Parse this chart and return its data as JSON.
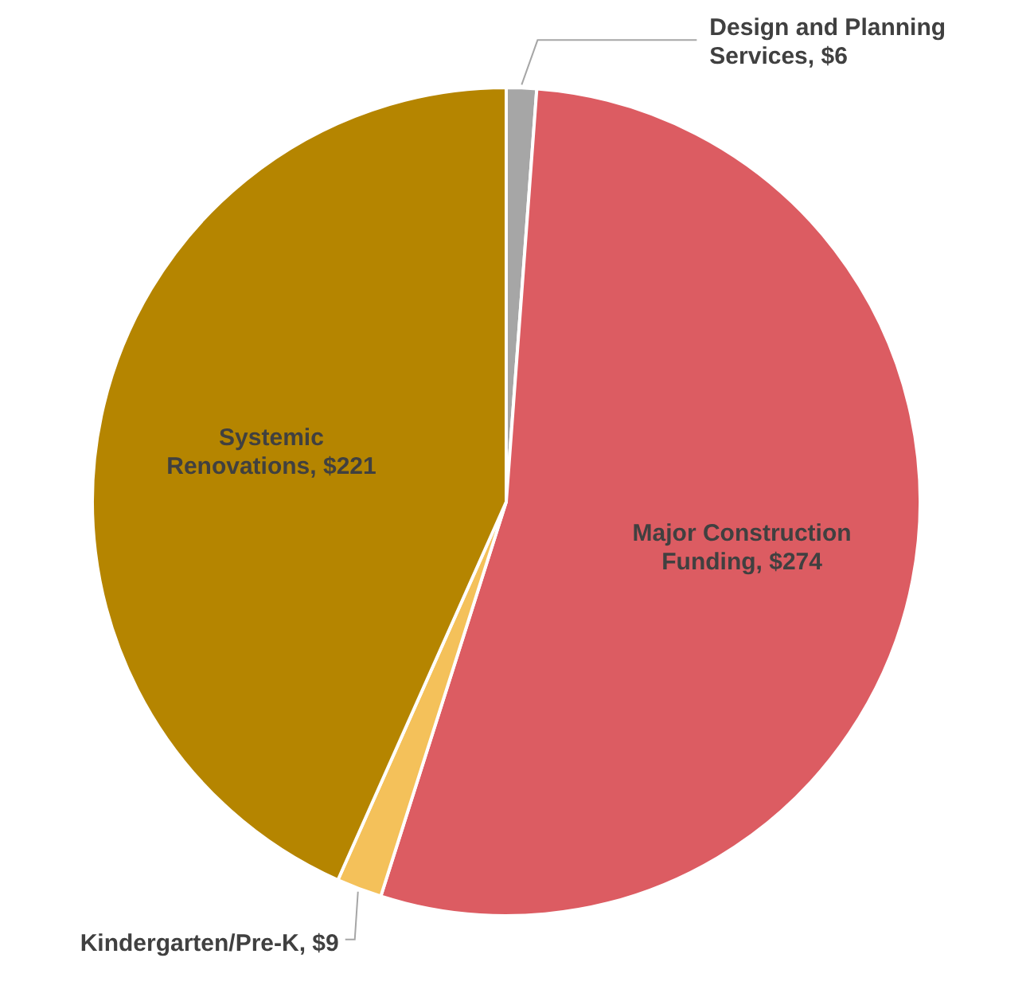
{
  "chart_data": {
    "type": "pie",
    "categories": [
      "Design and Planning Services",
      "Major Construction Funding",
      "Kindergarten/Pre-K",
      "Systemic Renovations"
    ],
    "values": [
      6,
      274,
      9,
      221
    ],
    "value_labels": [
      "$6",
      "$274",
      "$9",
      "$221"
    ],
    "colors": [
      "#a6a6a6",
      "#dc5c62",
      "#f4c15a",
      "#b58500"
    ],
    "legend": false
  }
}
